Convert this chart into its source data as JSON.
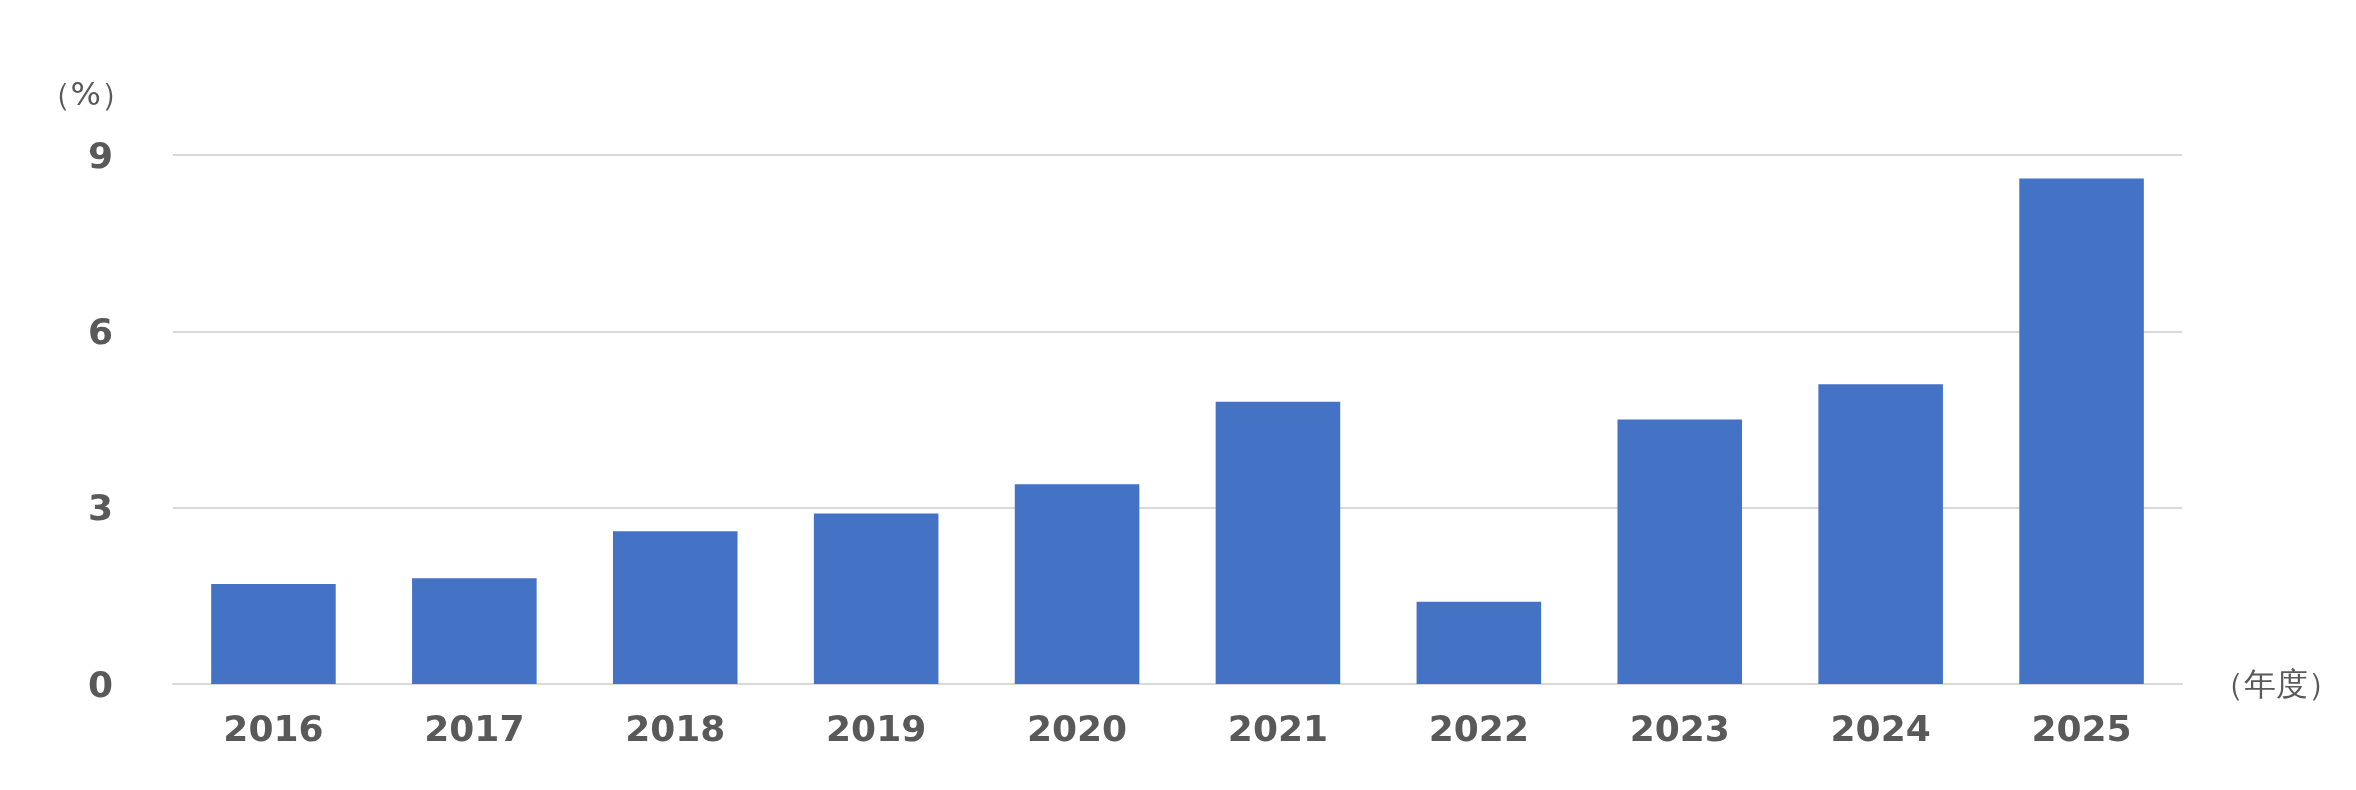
{
  "chart_data": {
    "type": "bar",
    "xlabel": "（年度）",
    "ylabel": "（%）",
    "categories": [
      "2016",
      "2017",
      "2018",
      "2019",
      "2020",
      "2021",
      "2022",
      "2023",
      "2024",
      "2025"
    ],
    "values": [
      1.7,
      1.8,
      2.6,
      2.9,
      3.4,
      4.8,
      1.4,
      4.5,
      5.1,
      8.6
    ],
    "color": "#4472c4",
    "ylim": [
      0,
      9
    ],
    "yticks": [
      0,
      3,
      6,
      9
    ],
    "grid": "y"
  }
}
